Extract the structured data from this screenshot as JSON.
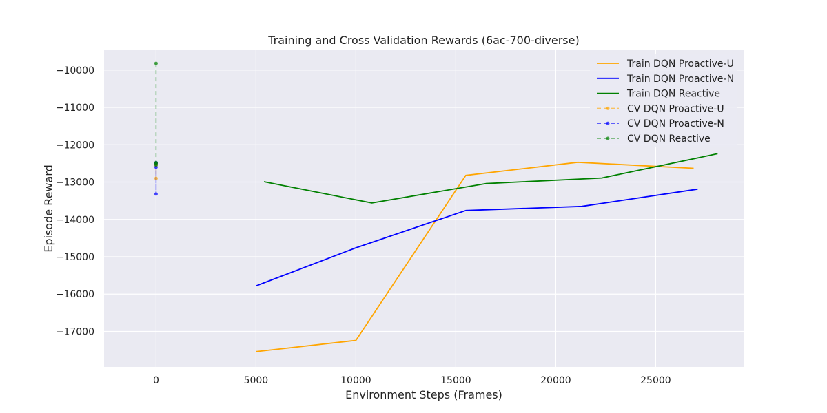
{
  "chart_data": {
    "type": "line",
    "title": "Training and Cross Validation Rewards (6ac-700-diverse)",
    "xlabel": "Environment Steps (Frames)",
    "ylabel": "Episode Reward",
    "xlim": [
      -2600,
      29400
    ],
    "ylim": [
      -17950,
      -9450
    ],
    "xticks": [
      0,
      5000,
      10000,
      15000,
      20000,
      25000
    ],
    "xtick_labels": [
      "0",
      "5000",
      "10000",
      "15000",
      "20000",
      "25000"
    ],
    "yticks": [
      -17000,
      -16000,
      -15000,
      -14000,
      -13000,
      -12000,
      -11000,
      -10000
    ],
    "ytick_labels": [
      "−17000",
      "−16000",
      "−15000",
      "−14000",
      "−13000",
      "−12000",
      "−11000",
      "−10000"
    ],
    "grid": true,
    "background": "#eaeaf2",
    "legend_position": "top-right",
    "series": [
      {
        "name": "Train DQN Proactive-U",
        "color": "#ffa500",
        "style": "solid",
        "x": [
          5000,
          10000,
          15500,
          21100,
          26900
        ],
        "y": [
          -17540,
          -17240,
          -12820,
          -12470,
          -12630
        ]
      },
      {
        "name": "Train DQN Proactive-N",
        "color": "#0000ff",
        "style": "solid",
        "x": [
          5000,
          10000,
          15500,
          21300,
          27100
        ],
        "y": [
          -15780,
          -14760,
          -13760,
          -13650,
          -13190
        ]
      },
      {
        "name": "Train DQN Reactive",
        "color": "#008000",
        "style": "solid",
        "x": [
          5400,
          10800,
          16500,
          22300,
          28100
        ],
        "y": [
          -12990,
          -13560,
          -13040,
          -12890,
          -12240
        ]
      },
      {
        "name": "CV DQN Proactive-U",
        "color": "#ffa500",
        "style": "dashed",
        "x": [
          0,
          0,
          0,
          0
        ],
        "y": [
          -12500,
          -12550,
          -12900,
          -12520
        ]
      },
      {
        "name": "CV DQN Proactive-N",
        "color": "#0000ff",
        "style": "dashed",
        "x": [
          0,
          0,
          0,
          0
        ],
        "y": [
          -12500,
          -12600,
          -13320,
          -12480
        ]
      },
      {
        "name": "CV DQN Reactive",
        "color": "#008000",
        "style": "dashed",
        "x": [
          0,
          0,
          0,
          0
        ],
        "y": [
          -9820,
          -12480,
          -12540,
          -12500
        ]
      }
    ]
  }
}
